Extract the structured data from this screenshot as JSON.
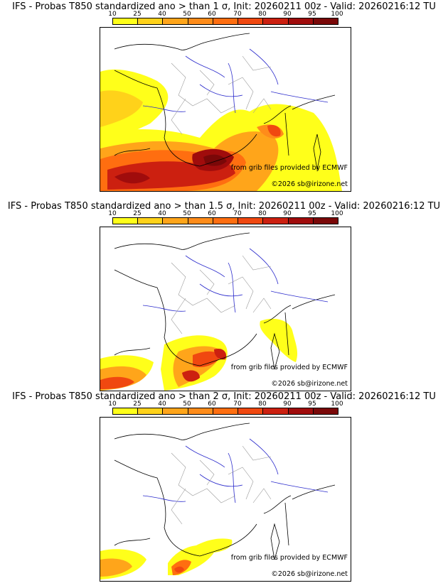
{
  "legend": {
    "ticks": [
      "10",
      "25",
      "40",
      "50",
      "60",
      "70",
      "80",
      "90",
      "95",
      "100"
    ],
    "colors": [
      "#ffff1a",
      "#ffd21a",
      "#ffa51a",
      "#ff8c1a",
      "#ff6e10",
      "#f04810",
      "#cc2010",
      "#a00c0c",
      "#7a0808",
      "#4f0404"
    ]
  },
  "panels": [
    {
      "title": "IFS - Probas T850  standardized ano > than 1 σ, Init: 20260211 00z - Valid: 20260216:12 TU",
      "credit_grib": "from grib files provided by ECMWF",
      "credit_copy": "©2026 sb@irizone.net"
    },
    {
      "title": "IFS - Probas T850  standardized ano > than 1.5 σ, Init: 20260211 00z - Valid: 20260216:12 TU",
      "credit_grib": "from grib files provided by ECMWF",
      "credit_copy": "©2026 sb@irizone.net"
    },
    {
      "title": "IFS - Probas T850  standardized ano > than 2 σ, Init: 20260211 00z - Valid: 20260216:12 TU",
      "credit_grib": "from grib files provided by ECMWF",
      "credit_copy": "©2026 sb@irizone.net"
    }
  ]
}
